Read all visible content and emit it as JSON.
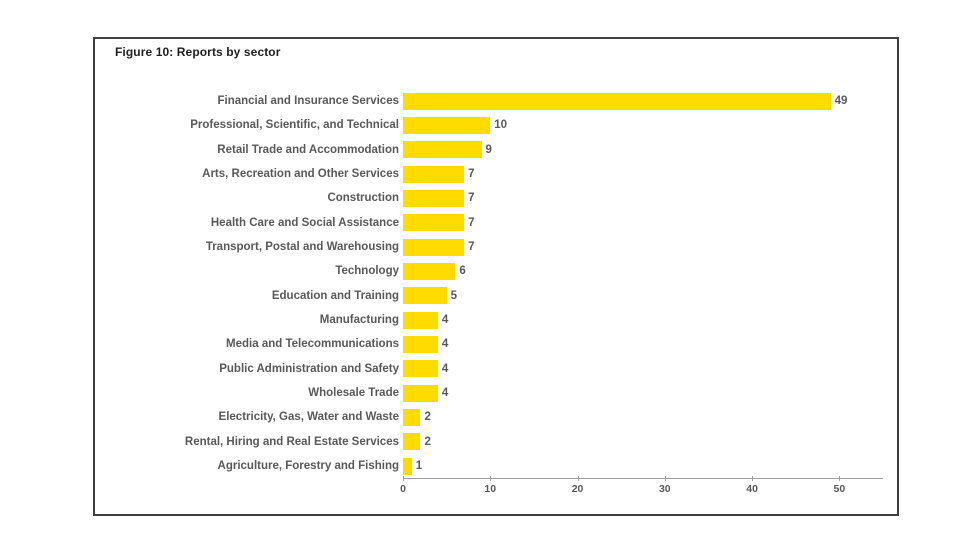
{
  "figure": {
    "title": "Figure 10: Reports by sector"
  },
  "colors": {
    "bar": "#FFDB00",
    "label_text": "#595959",
    "title_text": "#1f1f1f",
    "axis": "#9d9d9d",
    "border": "#404040"
  },
  "chart_data": {
    "type": "bar",
    "orientation": "horizontal",
    "title": "Figure 10: Reports by sector",
    "categories": [
      "Financial and Insurance Services",
      "Professional, Scientific, and Technical",
      "Retail Trade and Accommodation",
      "Arts, Recreation and Other Services",
      "Construction",
      "Health Care and Social Assistance",
      "Transport, Postal and Warehousing",
      "Technology",
      "Education and Training",
      "Manufacturing",
      "Media and Telecommunications",
      "Public Administration and Safety",
      "Wholesale Trade",
      "Electricity, Gas, Water and Waste",
      "Rental, Hiring and Real Estate Services",
      "Agriculture, Forestry and Fishing"
    ],
    "values": [
      49,
      10,
      9,
      7,
      7,
      7,
      7,
      6,
      5,
      4,
      4,
      4,
      4,
      2,
      2,
      1
    ],
    "xlabel": "",
    "ylabel": "",
    "xlim": [
      0,
      55
    ],
    "x_ticks": [
      0,
      10,
      20,
      30,
      40,
      50
    ],
    "grid": false,
    "legend": false,
    "data_labels": true,
    "bar_color": "#FFDB00"
  }
}
